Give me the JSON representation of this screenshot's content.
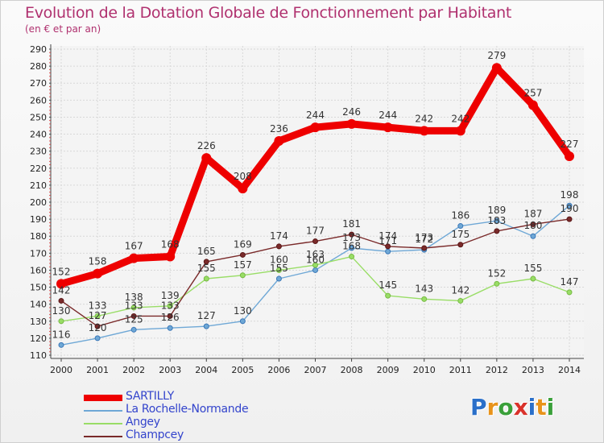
{
  "title": "Evolution de la Dotation Globale de Fonctionnement par Habitant",
  "subtitle": "(en € et par an)",
  "logo_text": "Proxiti",
  "chart_data": {
    "type": "line",
    "x": [
      "2000",
      "2001",
      "2002",
      "2003",
      "2004",
      "2005",
      "2006",
      "2007",
      "2008",
      "2009",
      "2010",
      "2011",
      "2012",
      "2013",
      "2014"
    ],
    "ylim": [
      110,
      290
    ],
    "yticks": [
      110,
      120,
      130,
      140,
      150,
      160,
      170,
      180,
      190,
      200,
      210,
      220,
      230,
      240,
      250,
      260,
      270,
      280,
      290
    ],
    "grid": true,
    "legend_position": "bottom-left",
    "series": [
      {
        "name": "SARTILLY",
        "color": "#ee0000",
        "values": [
          152,
          158,
          167,
          168,
          226,
          208,
          236,
          244,
          246,
          244,
          242,
          242,
          279,
          257,
          227
        ]
      },
      {
        "name": "La Rochelle-Normande",
        "color": "#6fa8d6",
        "values": [
          116,
          120,
          125,
          126,
          127,
          130,
          155,
          160,
          173,
          171,
          172,
          186,
          189,
          180,
          198
        ]
      },
      {
        "name": "Angey",
        "color": "#99dd66",
        "values": [
          130,
          133,
          138,
          139,
          155,
          157,
          160,
          163,
          168,
          145,
          143,
          142,
          152,
          155,
          147
        ]
      },
      {
        "name": "Champcey",
        "color": "#7a2a2a",
        "values": [
          142,
          127,
          133,
          133,
          165,
          169,
          174,
          177,
          181,
          174,
          173,
          175,
          183,
          187,
          190
        ]
      }
    ],
    "labels": {
      "SARTILLY": [
        "152",
        "158",
        "167",
        "168",
        "226",
        "208",
        "236",
        "244",
        "246",
        "244",
        "242",
        "242",
        "279",
        "257",
        "227"
      ],
      "La Rochelle-Normande": [
        "116",
        "120",
        "125",
        "126",
        "127",
        "130",
        "155",
        "160",
        "173",
        "171",
        "172",
        "186",
        "189",
        "180",
        "198"
      ],
      "Angey": [
        "130",
        "133",
        "138",
        "139",
        "155",
        "157",
        "160",
        "163",
        "168",
        "145",
        "143",
        "142",
        "152",
        "155",
        "147"
      ],
      "Champcey": [
        "142",
        "127",
        "133",
        "133",
        "165",
        "169",
        "174",
        "177",
        "181",
        "174",
        "173",
        "175",
        "183",
        "187",
        "190"
      ]
    }
  }
}
